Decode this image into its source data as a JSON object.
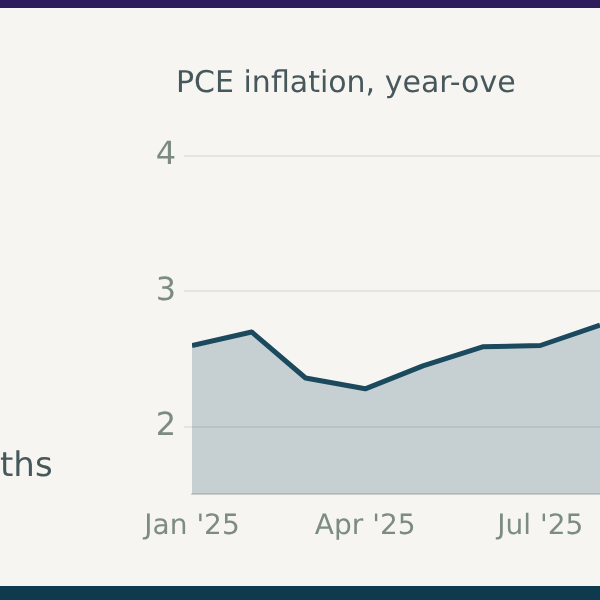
{
  "chart_data": {
    "type": "area",
    "title": "PCE inflation, year-ove",
    "annotations": [
      "ths"
    ],
    "x": [
      "2025-01",
      "2025-02",
      "2025-03",
      "2025-04",
      "2025-05",
      "2025-06",
      "2025-07",
      "2025-08"
    ],
    "series": [
      {
        "color": "#1b4a5e",
        "values": [
          2.6,
          2.7,
          2.36,
          2.28,
          2.45,
          2.59,
          2.6,
          2.75
        ]
      }
    ],
    "xlim": [
      "2025-01",
      "2025-08"
    ],
    "xticks": [
      {
        "value": "2025-01",
        "label": "Jan '25"
      },
      {
        "value": "2025-04",
        "label": "Apr '25"
      },
      {
        "value": "2025-07",
        "label": "Jul '25"
      }
    ],
    "ylim": [
      1.5,
      4
    ],
    "yticks": [
      2,
      3,
      4
    ],
    "grid": "y",
    "legend": false
  }
}
